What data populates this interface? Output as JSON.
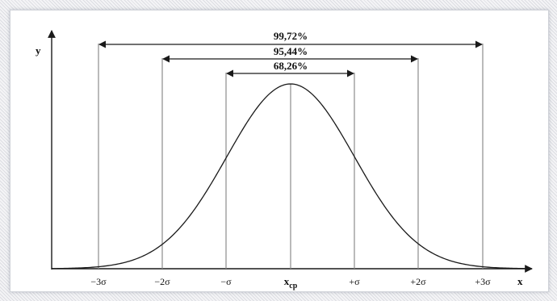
{
  "diagram": {
    "axis_y_label": "y",
    "axis_x_label": "x",
    "ticks": [
      "−3σ",
      "−2σ",
      "−σ",
      "x",
      "+σ",
      "+2σ",
      "+3σ"
    ],
    "mean_subscript": "cp",
    "intervals": [
      {
        "label": "99,72%",
        "from_sigma": -3,
        "to_sigma": 3
      },
      {
        "label": "95,44%",
        "from_sigma": -2,
        "to_sigma": 2
      },
      {
        "label": "68,26%",
        "from_sigma": -1,
        "to_sigma": 1
      }
    ],
    "colors": {
      "line": "#1a1a1a",
      "guide": "#8c8c8c",
      "text": "#111111"
    }
  }
}
